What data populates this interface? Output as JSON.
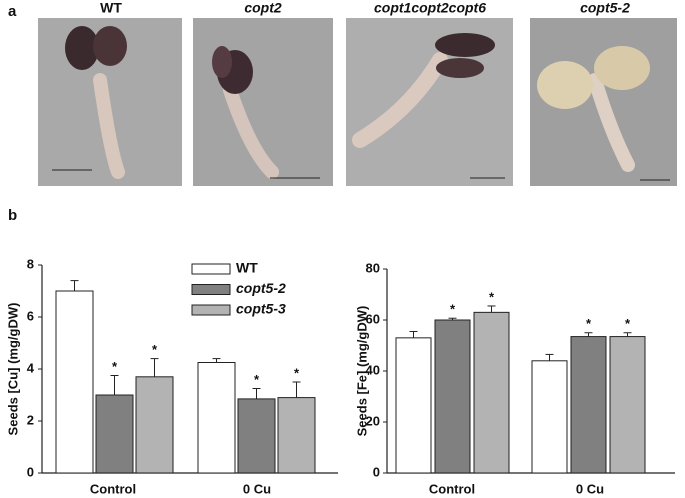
{
  "panel_a": {
    "label": "a",
    "images": [
      "WT",
      "copt2",
      "copt1copt2copt6",
      "copt5-2"
    ]
  },
  "panel_b": {
    "label": "b"
  },
  "chart_data": [
    {
      "type": "bar",
      "y_label": "Seeds [Cu] (mg/gDW)",
      "categories": [
        "Control",
        "0 Cu"
      ],
      "ylim": [
        0,
        8
      ],
      "yticks": [
        0,
        2,
        4,
        6,
        8
      ],
      "legend": true,
      "series": [
        {
          "name": "WT",
          "color": "#ffffff",
          "values": [
            7.0,
            4.25
          ],
          "errors": [
            0.4,
            0.15
          ]
        },
        {
          "name": "copt5-2",
          "color": "#808080",
          "values": [
            3.0,
            2.85
          ],
          "errors": [
            0.75,
            0.4
          ],
          "significance": [
            "*",
            "*"
          ]
        },
        {
          "name": "copt5-3",
          "color": "#b3b3b3",
          "values": [
            3.7,
            2.9
          ],
          "errors": [
            0.7,
            0.6
          ],
          "significance": [
            "*",
            "*"
          ]
        }
      ]
    },
    {
      "type": "bar",
      "y_label": "Seeds [Fe] (mg/gDW)",
      "categories": [
        "Control",
        "0 Cu"
      ],
      "ylim": [
        0,
        80
      ],
      "yticks": [
        0,
        20,
        40,
        60,
        80
      ],
      "legend": false,
      "series": [
        {
          "color": "#ffffff",
          "values": [
            53,
            44
          ],
          "errors": [
            2.5,
            2.5
          ]
        },
        {
          "color": "#808080",
          "values": [
            60,
            53.5
          ],
          "errors": [
            0.7,
            1.5
          ],
          "significance": [
            "*",
            "*"
          ]
        },
        {
          "color": "#b3b3b3",
          "values": [
            63,
            53.5
          ],
          "errors": [
            2.5,
            1.5
          ],
          "significance": [
            "*",
            "*"
          ]
        }
      ]
    }
  ]
}
